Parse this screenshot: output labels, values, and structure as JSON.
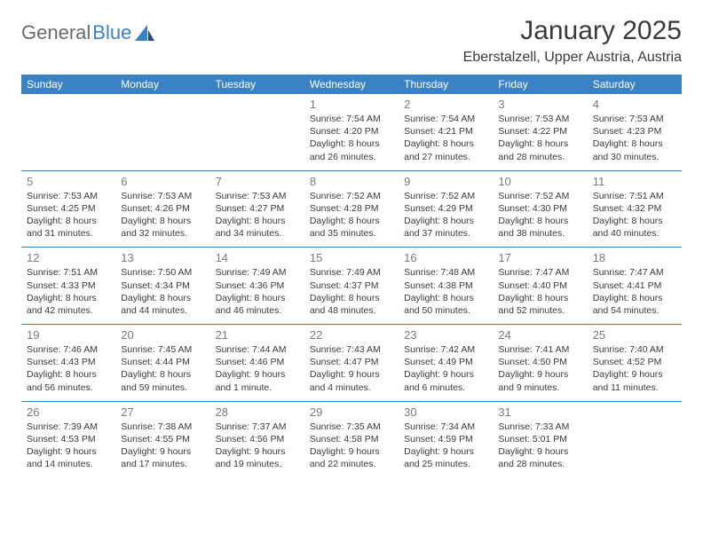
{
  "brand": {
    "part1": "General",
    "part2": "Blue"
  },
  "title": "January 2025",
  "location": "Eberstalzell, Upper Austria, Austria",
  "colors": {
    "header_bg": "#3b82c4",
    "header_text": "#ffffff",
    "daynum": "#7a7a7a",
    "body_text": "#3a3a3a",
    "logo_gray": "#6b6b6b",
    "logo_blue": "#3b82c4",
    "divider": "#3b82c4"
  },
  "weekdays": [
    "Sunday",
    "Monday",
    "Tuesday",
    "Wednesday",
    "Thursday",
    "Friday",
    "Saturday"
  ],
  "weeks": [
    [
      null,
      null,
      null,
      {
        "n": "1",
        "sr": "Sunrise: 7:54 AM",
        "ss": "Sunset: 4:20 PM",
        "d1": "Daylight: 8 hours",
        "d2": "and 26 minutes."
      },
      {
        "n": "2",
        "sr": "Sunrise: 7:54 AM",
        "ss": "Sunset: 4:21 PM",
        "d1": "Daylight: 8 hours",
        "d2": "and 27 minutes."
      },
      {
        "n": "3",
        "sr": "Sunrise: 7:53 AM",
        "ss": "Sunset: 4:22 PM",
        "d1": "Daylight: 8 hours",
        "d2": "and 28 minutes."
      },
      {
        "n": "4",
        "sr": "Sunrise: 7:53 AM",
        "ss": "Sunset: 4:23 PM",
        "d1": "Daylight: 8 hours",
        "d2": "and 30 minutes."
      }
    ],
    [
      {
        "n": "5",
        "sr": "Sunrise: 7:53 AM",
        "ss": "Sunset: 4:25 PM",
        "d1": "Daylight: 8 hours",
        "d2": "and 31 minutes."
      },
      {
        "n": "6",
        "sr": "Sunrise: 7:53 AM",
        "ss": "Sunset: 4:26 PM",
        "d1": "Daylight: 8 hours",
        "d2": "and 32 minutes."
      },
      {
        "n": "7",
        "sr": "Sunrise: 7:53 AM",
        "ss": "Sunset: 4:27 PM",
        "d1": "Daylight: 8 hours",
        "d2": "and 34 minutes."
      },
      {
        "n": "8",
        "sr": "Sunrise: 7:52 AM",
        "ss": "Sunset: 4:28 PM",
        "d1": "Daylight: 8 hours",
        "d2": "and 35 minutes."
      },
      {
        "n": "9",
        "sr": "Sunrise: 7:52 AM",
        "ss": "Sunset: 4:29 PM",
        "d1": "Daylight: 8 hours",
        "d2": "and 37 minutes."
      },
      {
        "n": "10",
        "sr": "Sunrise: 7:52 AM",
        "ss": "Sunset: 4:30 PM",
        "d1": "Daylight: 8 hours",
        "d2": "and 38 minutes."
      },
      {
        "n": "11",
        "sr": "Sunrise: 7:51 AM",
        "ss": "Sunset: 4:32 PM",
        "d1": "Daylight: 8 hours",
        "d2": "and 40 minutes."
      }
    ],
    [
      {
        "n": "12",
        "sr": "Sunrise: 7:51 AM",
        "ss": "Sunset: 4:33 PM",
        "d1": "Daylight: 8 hours",
        "d2": "and 42 minutes."
      },
      {
        "n": "13",
        "sr": "Sunrise: 7:50 AM",
        "ss": "Sunset: 4:34 PM",
        "d1": "Daylight: 8 hours",
        "d2": "and 44 minutes."
      },
      {
        "n": "14",
        "sr": "Sunrise: 7:49 AM",
        "ss": "Sunset: 4:36 PM",
        "d1": "Daylight: 8 hours",
        "d2": "and 46 minutes."
      },
      {
        "n": "15",
        "sr": "Sunrise: 7:49 AM",
        "ss": "Sunset: 4:37 PM",
        "d1": "Daylight: 8 hours",
        "d2": "and 48 minutes."
      },
      {
        "n": "16",
        "sr": "Sunrise: 7:48 AM",
        "ss": "Sunset: 4:38 PM",
        "d1": "Daylight: 8 hours",
        "d2": "and 50 minutes."
      },
      {
        "n": "17",
        "sr": "Sunrise: 7:47 AM",
        "ss": "Sunset: 4:40 PM",
        "d1": "Daylight: 8 hours",
        "d2": "and 52 minutes."
      },
      {
        "n": "18",
        "sr": "Sunrise: 7:47 AM",
        "ss": "Sunset: 4:41 PM",
        "d1": "Daylight: 8 hours",
        "d2": "and 54 minutes."
      }
    ],
    [
      {
        "n": "19",
        "sr": "Sunrise: 7:46 AM",
        "ss": "Sunset: 4:43 PM",
        "d1": "Daylight: 8 hours",
        "d2": "and 56 minutes."
      },
      {
        "n": "20",
        "sr": "Sunrise: 7:45 AM",
        "ss": "Sunset: 4:44 PM",
        "d1": "Daylight: 8 hours",
        "d2": "and 59 minutes."
      },
      {
        "n": "21",
        "sr": "Sunrise: 7:44 AM",
        "ss": "Sunset: 4:46 PM",
        "d1": "Daylight: 9 hours",
        "d2": "and 1 minute."
      },
      {
        "n": "22",
        "sr": "Sunrise: 7:43 AM",
        "ss": "Sunset: 4:47 PM",
        "d1": "Daylight: 9 hours",
        "d2": "and 4 minutes."
      },
      {
        "n": "23",
        "sr": "Sunrise: 7:42 AM",
        "ss": "Sunset: 4:49 PM",
        "d1": "Daylight: 9 hours",
        "d2": "and 6 minutes."
      },
      {
        "n": "24",
        "sr": "Sunrise: 7:41 AM",
        "ss": "Sunset: 4:50 PM",
        "d1": "Daylight: 9 hours",
        "d2": "and 9 minutes."
      },
      {
        "n": "25",
        "sr": "Sunrise: 7:40 AM",
        "ss": "Sunset: 4:52 PM",
        "d1": "Daylight: 9 hours",
        "d2": "and 11 minutes."
      }
    ],
    [
      {
        "n": "26",
        "sr": "Sunrise: 7:39 AM",
        "ss": "Sunset: 4:53 PM",
        "d1": "Daylight: 9 hours",
        "d2": "and 14 minutes."
      },
      {
        "n": "27",
        "sr": "Sunrise: 7:38 AM",
        "ss": "Sunset: 4:55 PM",
        "d1": "Daylight: 9 hours",
        "d2": "and 17 minutes."
      },
      {
        "n": "28",
        "sr": "Sunrise: 7:37 AM",
        "ss": "Sunset: 4:56 PM",
        "d1": "Daylight: 9 hours",
        "d2": "and 19 minutes."
      },
      {
        "n": "29",
        "sr": "Sunrise: 7:35 AM",
        "ss": "Sunset: 4:58 PM",
        "d1": "Daylight: 9 hours",
        "d2": "and 22 minutes."
      },
      {
        "n": "30",
        "sr": "Sunrise: 7:34 AM",
        "ss": "Sunset: 4:59 PM",
        "d1": "Daylight: 9 hours",
        "d2": "and 25 minutes."
      },
      {
        "n": "31",
        "sr": "Sunrise: 7:33 AM",
        "ss": "Sunset: 5:01 PM",
        "d1": "Daylight: 9 hours",
        "d2": "and 28 minutes."
      },
      null
    ]
  ]
}
